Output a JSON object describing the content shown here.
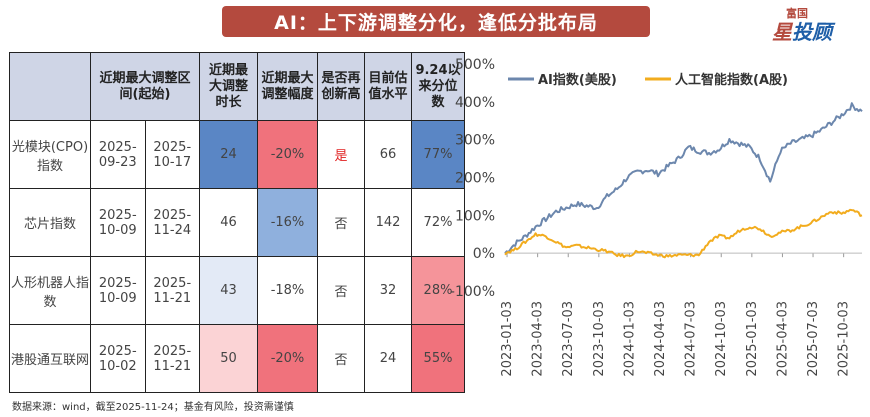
{
  "title": "AI：上下游调整分化，逢低分批布局",
  "logo": {
    "small": "富国",
    "big_1": "星",
    "big_2": "投顾"
  },
  "colors": {
    "banner": "#b44a3e",
    "us_series": "#6c87ad",
    "a_series": "#f2ac1e"
  },
  "table": {
    "headers": [
      "",
      "近期最大调整区间(起始)",
      "近期最大调整时长",
      "近期最大调整幅度",
      "是否再创新高",
      "目前估值水平",
      "9.24以来分位数"
    ],
    "rows": [
      {
        "name": "光模块(CPO)指数",
        "start": "2025-09-23",
        "end": "2025-10-17",
        "duration": "24",
        "drawdown": "-20%",
        "new_high": "是",
        "valuation": "66",
        "percentile": "77%"
      },
      {
        "name": "芯片指数",
        "start": "2025-10-09",
        "end": "2025-11-24",
        "duration": "46",
        "drawdown": "-16%",
        "new_high": "否",
        "valuation": "142",
        "percentile": "72%"
      },
      {
        "name": "人形机器人指数",
        "start": "2025-10-09",
        "end": "2025-11-21",
        "duration": "43",
        "drawdown": "-18%",
        "new_high": "否",
        "valuation": "32",
        "percentile": "28%"
      },
      {
        "name": "港股通互联网",
        "start": "2025-10-02",
        "end": "2025-11-21",
        "duration": "50",
        "drawdown": "-20%",
        "new_high": "否",
        "valuation": "24",
        "percentile": "55%"
      }
    ]
  },
  "source": "数据来源：wind，截至2025-11-24；基金有风险，投资需谨慎",
  "chart_data": {
    "type": "line",
    "title": "",
    "legend_position": "top-left",
    "x_ticks": [
      "2023-01-03",
      "2023-04-03",
      "2023-07-03",
      "2023-10-03",
      "2024-01-03",
      "2024-04-03",
      "2024-07-03",
      "2024-10-03",
      "2025-01-03",
      "2025-04-03",
      "2025-07-03",
      "2025-10-03"
    ],
    "y_ticks": [
      "500%",
      "400%",
      "300%",
      "200%",
      "100%",
      "0%",
      "-100%"
    ],
    "ylim": [
      -100,
      500
    ],
    "x_range_months": [
      0,
      35
    ],
    "series": [
      {
        "name": "AI指数(美股)",
        "x_months": [
          0,
          1,
          2,
          3,
          4,
          5,
          6,
          7,
          8,
          9,
          10,
          11,
          12,
          13,
          14,
          15,
          16,
          17,
          18,
          19,
          20,
          21,
          22,
          23,
          24,
          25,
          26,
          27,
          28,
          29,
          30,
          31,
          32,
          33,
          34,
          35
        ],
        "values": [
          0,
          25,
          45,
          70,
          90,
          110,
          120,
          130,
          125,
          120,
          150,
          170,
          200,
          215,
          220,
          210,
          230,
          250,
          280,
          270,
          265,
          275,
          300,
          290,
          280,
          250,
          190,
          270,
          290,
          300,
          310,
          325,
          345,
          365,
          390,
          375
        ]
      },
      {
        "name": "人工智能指数(A股)",
        "x_months": [
          0,
          1,
          2,
          3,
          4,
          5,
          6,
          7,
          8,
          9,
          10,
          11,
          12,
          13,
          14,
          15,
          16,
          17,
          18,
          19,
          20,
          21,
          22,
          23,
          24,
          25,
          26,
          27,
          28,
          29,
          30,
          31,
          32,
          33,
          34,
          35
        ],
        "values": [
          0,
          10,
          30,
          50,
          45,
          30,
          15,
          20,
          15,
          10,
          5,
          -5,
          -8,
          5,
          0,
          -5,
          -8,
          -5,
          -5,
          -5,
          30,
          45,
          40,
          60,
          70,
          65,
          45,
          55,
          60,
          70,
          80,
          95,
          110,
          105,
          115,
          100
        ]
      }
    ]
  }
}
